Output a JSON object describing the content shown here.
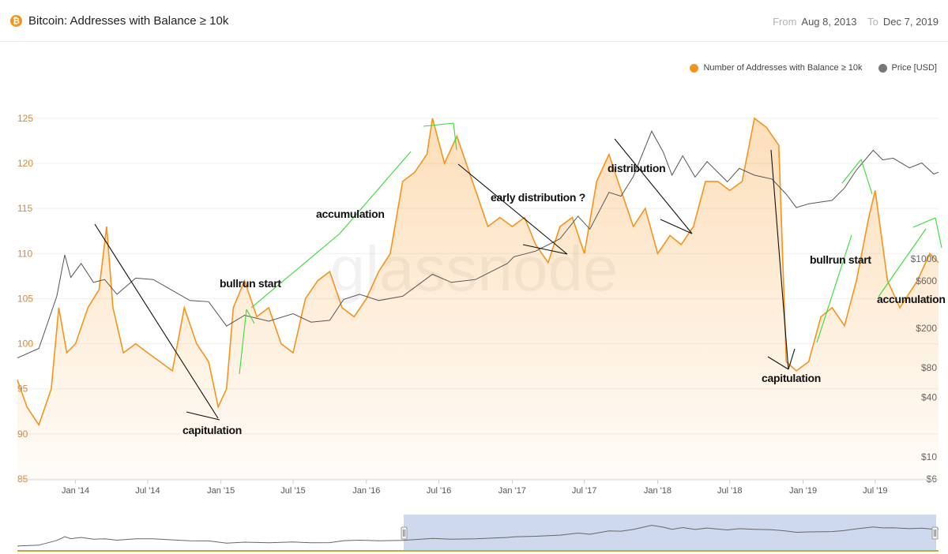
{
  "header": {
    "title": "Bitcoin: Addresses with Balance ≥ 10k",
    "coin_symbol": "₿",
    "from_label": "From",
    "from_value": "Aug 8, 2013",
    "to_label": "To",
    "to_value": "Dec 7, 2019"
  },
  "legend": {
    "items": [
      {
        "label": "Number of Addresses with Balance ≥ 10k",
        "color": "#f7931a"
      },
      {
        "label": "Price [USD]",
        "color": "#777777"
      }
    ]
  },
  "watermark": "glassnode",
  "colors": {
    "series": "#f7931a",
    "price": "#555555",
    "navigator": "#c5d2ea",
    "annotation_green": "#33dd33",
    "annotation_black": "#111111",
    "axis_label": "#d38a3a"
  },
  "chart_data": {
    "type": "line",
    "title": "Bitcoin: Addresses with Balance ≥ 10k",
    "x_range": [
      "2013-08-08",
      "2019-12-07"
    ],
    "x_ticks": [
      {
        "label": "Jan '14",
        "date": "2014-01-01"
      },
      {
        "label": "Jul '14",
        "date": "2014-07-01"
      },
      {
        "label": "Jan '15",
        "date": "2015-01-01"
      },
      {
        "label": "Jul '15",
        "date": "2015-07-01"
      },
      {
        "label": "Jan '16",
        "date": "2016-01-01"
      },
      {
        "label": "Jul '16",
        "date": "2016-07-01"
      },
      {
        "label": "Jan '17",
        "date": "2017-01-01"
      },
      {
        "label": "Jul '17",
        "date": "2017-07-01"
      },
      {
        "label": "Jan '18",
        "date": "2018-01-01"
      },
      {
        "label": "Jul '18",
        "date": "2018-07-01"
      },
      {
        "label": "Jan '19",
        "date": "2019-01-01"
      },
      {
        "label": "Jul '19",
        "date": "2019-07-01"
      }
    ],
    "y_left": {
      "min": 85,
      "max": 127,
      "ticks": [
        85,
        90,
        95,
        100,
        105,
        110,
        115,
        120,
        125
      ]
    },
    "y_right": {
      "scale": "log",
      "min": 6,
      "max": 40000,
      "ticks": [
        {
          "label": "$6",
          "value": 6
        },
        {
          "label": "$10",
          "value": 10
        },
        {
          "label": "$40",
          "value": 40
        },
        {
          "label": "$80",
          "value": 80
        },
        {
          "label": "$200",
          "value": 200
        },
        {
          "label": "$600",
          "value": 600
        },
        {
          "label": "$1000",
          "value": 1000
        }
      ]
    },
    "series": [
      {
        "name": "Number of Addresses with Balance ≥ 10k",
        "axis": "left",
        "style": "area",
        "points": [
          [
            "2013-08-08",
            96
          ],
          [
            "2013-09-01",
            93
          ],
          [
            "2013-10-01",
            91
          ],
          [
            "2013-11-01",
            95
          ],
          [
            "2013-11-20",
            104
          ],
          [
            "2013-12-10",
            99
          ],
          [
            "2014-01-01",
            100
          ],
          [
            "2014-02-01",
            104
          ],
          [
            "2014-03-01",
            106
          ],
          [
            "2014-03-20",
            113
          ],
          [
            "2014-04-05",
            104
          ],
          [
            "2014-05-01",
            99
          ],
          [
            "2014-06-01",
            100
          ],
          [
            "2014-07-01",
            99
          ],
          [
            "2014-08-01",
            98
          ],
          [
            "2014-09-01",
            97
          ],
          [
            "2014-10-01",
            104
          ],
          [
            "2014-11-01",
            100
          ],
          [
            "2014-12-01",
            98
          ],
          [
            "2014-12-25",
            93
          ],
          [
            "2015-01-15",
            95
          ],
          [
            "2015-02-01",
            104
          ],
          [
            "2015-03-01",
            107
          ],
          [
            "2015-04-01",
            103
          ],
          [
            "2015-05-01",
            104
          ],
          [
            "2015-06-01",
            100
          ],
          [
            "2015-07-01",
            99
          ],
          [
            "2015-08-01",
            105
          ],
          [
            "2015-09-01",
            107
          ],
          [
            "2015-10-01",
            108
          ],
          [
            "2015-11-01",
            104
          ],
          [
            "2015-12-01",
            103
          ],
          [
            "2016-01-01",
            105
          ],
          [
            "2016-02-01",
            108
          ],
          [
            "2016-03-01",
            110
          ],
          [
            "2016-04-01",
            118
          ],
          [
            "2016-05-01",
            119
          ],
          [
            "2016-06-01",
            121
          ],
          [
            "2016-06-15",
            125
          ],
          [
            "2016-07-15",
            120
          ],
          [
            "2016-08-15",
            123
          ],
          [
            "2016-10-01",
            117
          ],
          [
            "2016-11-01",
            113
          ],
          [
            "2016-12-01",
            114
          ],
          [
            "2017-01-01",
            113
          ],
          [
            "2017-02-01",
            114
          ],
          [
            "2017-03-01",
            111
          ],
          [
            "2017-04-01",
            109
          ],
          [
            "2017-05-01",
            113
          ],
          [
            "2017-06-01",
            114
          ],
          [
            "2017-07-01",
            110
          ],
          [
            "2017-08-01",
            118
          ],
          [
            "2017-09-01",
            121
          ],
          [
            "2017-10-01",
            117
          ],
          [
            "2017-11-01",
            113
          ],
          [
            "2017-12-01",
            115
          ],
          [
            "2018-01-01",
            110
          ],
          [
            "2018-02-01",
            112
          ],
          [
            "2018-03-01",
            111
          ],
          [
            "2018-04-01",
            113
          ],
          [
            "2018-05-01",
            118
          ],
          [
            "2018-06-01",
            118
          ],
          [
            "2018-07-01",
            117
          ],
          [
            "2018-08-01",
            118
          ],
          [
            "2018-09-01",
            125
          ],
          [
            "2018-10-01",
            124
          ],
          [
            "2018-11-01",
            122
          ],
          [
            "2018-11-20",
            98
          ],
          [
            "2018-12-15",
            97
          ],
          [
            "2019-01-15",
            98
          ],
          [
            "2019-02-15",
            103
          ],
          [
            "2019-03-15",
            104
          ],
          [
            "2019-04-15",
            102
          ],
          [
            "2019-05-15",
            107
          ],
          [
            "2019-06-15",
            114
          ],
          [
            "2019-07-01",
            117
          ],
          [
            "2019-08-01",
            107
          ],
          [
            "2019-09-01",
            104
          ],
          [
            "2019-10-15",
            107
          ],
          [
            "2019-11-15",
            110
          ],
          [
            "2019-12-07",
            109
          ]
        ]
      },
      {
        "name": "Price [USD]",
        "axis": "right",
        "style": "line",
        "points": [
          [
            "2013-08-08",
            100
          ],
          [
            "2013-10-01",
            125
          ],
          [
            "2013-11-15",
            420
          ],
          [
            "2013-12-05",
            1100
          ],
          [
            "2013-12-20",
            650
          ],
          [
            "2014-01-15",
            900
          ],
          [
            "2014-02-15",
            580
          ],
          [
            "2014-03-15",
            620
          ],
          [
            "2014-04-15",
            440
          ],
          [
            "2014-06-01",
            640
          ],
          [
            "2014-07-15",
            620
          ],
          [
            "2014-09-01",
            480
          ],
          [
            "2014-10-15",
            380
          ],
          [
            "2014-12-01",
            370
          ],
          [
            "2015-01-15",
            210
          ],
          [
            "2015-03-01",
            270
          ],
          [
            "2015-05-01",
            235
          ],
          [
            "2015-07-01",
            280
          ],
          [
            "2015-08-15",
            230
          ],
          [
            "2015-10-01",
            240
          ],
          [
            "2015-11-05",
            390
          ],
          [
            "2015-12-15",
            440
          ],
          [
            "2016-02-01",
            380
          ],
          [
            "2016-04-01",
            420
          ],
          [
            "2016-06-15",
            700
          ],
          [
            "2016-08-01",
            580
          ],
          [
            "2016-10-01",
            620
          ],
          [
            "2016-12-20",
            900
          ],
          [
            "2017-01-05",
            1050
          ],
          [
            "2017-03-01",
            1200
          ],
          [
            "2017-05-01",
            1600
          ],
          [
            "2017-06-15",
            2700
          ],
          [
            "2017-07-15",
            2000
          ],
          [
            "2017-09-01",
            4700
          ],
          [
            "2017-10-01",
            4300
          ],
          [
            "2017-11-01",
            6800
          ],
          [
            "2017-12-17",
            19500
          ],
          [
            "2018-01-15",
            12000
          ],
          [
            "2018-02-06",
            7000
          ],
          [
            "2018-03-05",
            11000
          ],
          [
            "2018-04-05",
            6700
          ],
          [
            "2018-05-05",
            9600
          ],
          [
            "2018-06-25",
            6000
          ],
          [
            "2018-07-25",
            8200
          ],
          [
            "2018-09-01",
            7000
          ],
          [
            "2018-10-15",
            6400
          ],
          [
            "2018-11-20",
            4500
          ],
          [
            "2018-12-15",
            3300
          ],
          [
            "2019-01-15",
            3600
          ],
          [
            "2019-03-15",
            3900
          ],
          [
            "2019-04-15",
            5200
          ],
          [
            "2019-05-15",
            7900
          ],
          [
            "2019-06-26",
            12500
          ],
          [
            "2019-07-20",
            10000
          ],
          [
            "2019-08-15",
            10400
          ],
          [
            "2019-09-25",
            8300
          ],
          [
            "2019-10-26",
            9300
          ],
          [
            "2019-11-25",
            7200
          ],
          [
            "2019-12-07",
            7500
          ]
        ]
      }
    ],
    "annotations": [
      {
        "text": "capitulation"
      },
      {
        "text": "bullrun start"
      },
      {
        "text": "accumulation"
      },
      {
        "text": "early distribution ?"
      },
      {
        "text": "distribution"
      },
      {
        "text": "capitulation"
      },
      {
        "text": "bullrun start"
      },
      {
        "text": "accumulation"
      }
    ]
  }
}
